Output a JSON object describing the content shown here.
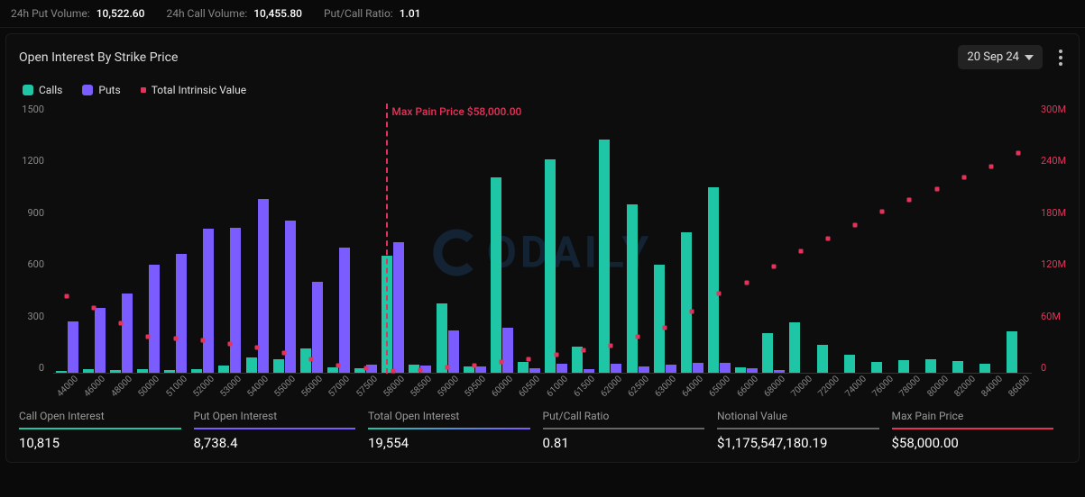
{
  "top_stats": {
    "put_volume_label": "24h Put Volume:",
    "put_volume_value": "10,522.60",
    "call_volume_label": "24h Call Volume:",
    "call_volume_value": "10,455.80",
    "ratio_label": "Put/Call Ratio:",
    "ratio_value": "1.01"
  },
  "panel": {
    "title": "Open Interest By Strike Price",
    "date": "20 Sep 24"
  },
  "legend": {
    "calls": "Calls",
    "puts": "Puts",
    "tiv": "Total Intrinsic Value"
  },
  "colors": {
    "calls": "#1fc6a6",
    "puts": "#7b5cff",
    "tiv": "#e6325a",
    "bg": "#0a0a0a",
    "grid": "#333"
  },
  "chart": {
    "type": "bar+scatter",
    "y_left_max": 1500,
    "y_left_ticks": [
      "1500",
      "1200",
      "900",
      "600",
      "300",
      "0"
    ],
    "y_right_max": 300,
    "y_right_ticks": [
      "300M",
      "240M",
      "180M",
      "120M",
      "60M",
      "0"
    ],
    "max_pain_label": "Max Pain Price $58,000.00",
    "max_pain_strike": "58000",
    "strikes": [
      "44000",
      "46000",
      "48000",
      "50000",
      "51000",
      "52000",
      "53000",
      "54000",
      "55000",
      "56000",
      "57000",
      "57500",
      "58000",
      "58500",
      "59000",
      "59500",
      "60000",
      "60500",
      "61000",
      "61500",
      "62000",
      "62500",
      "63000",
      "64000",
      "65000",
      "66000",
      "68000",
      "70000",
      "72000",
      "74000",
      "76000",
      "78000",
      "80000",
      "82000",
      "84000",
      "86000"
    ],
    "calls": [
      10,
      20,
      15,
      20,
      15,
      20,
      40,
      85,
      75,
      135,
      30,
      25,
      650,
      45,
      385,
      35,
      1090,
      60,
      1190,
      145,
      1300,
      940,
      600,
      785,
      1035,
      30,
      220,
      280,
      155,
      100,
      60,
      70,
      75,
      65,
      50,
      230
    ],
    "puts": [
      285,
      360,
      440,
      600,
      660,
      805,
      810,
      970,
      850,
      505,
      695,
      45,
      725,
      40,
      235,
      35,
      250,
      25,
      50,
      20,
      50,
      35,
      45,
      55,
      55,
      25,
      15,
      0,
      0,
      0,
      0,
      0,
      0,
      0,
      0,
      0
    ],
    "tiv": [
      85,
      72,
      55,
      40,
      38,
      36,
      32,
      28,
      22,
      15,
      8,
      5,
      2,
      3,
      6,
      8,
      12,
      15,
      20,
      25,
      30,
      40,
      50,
      68,
      88,
      100,
      118,
      135,
      150,
      165,
      180,
      193,
      205,
      218,
      230,
      245
    ]
  },
  "bottom_stats": [
    {
      "label": "Call Open Interest",
      "value": "10,815",
      "underline": "underline-calls"
    },
    {
      "label": "Put Open Interest",
      "value": "8,738.4",
      "underline": "underline-puts"
    },
    {
      "label": "Total Open Interest",
      "value": "19,554",
      "underline": "underline-mixed"
    },
    {
      "label": "Put/Call Ratio",
      "value": "0.81",
      "underline": "underline-grey"
    },
    {
      "label": "Notional Value",
      "value": "$1,175,547,180.19",
      "underline": "underline-grey"
    },
    {
      "label": "Max Pain Price",
      "value": "$58,000.00",
      "underline": "underline-red"
    }
  ],
  "watermark": "ODAILY"
}
